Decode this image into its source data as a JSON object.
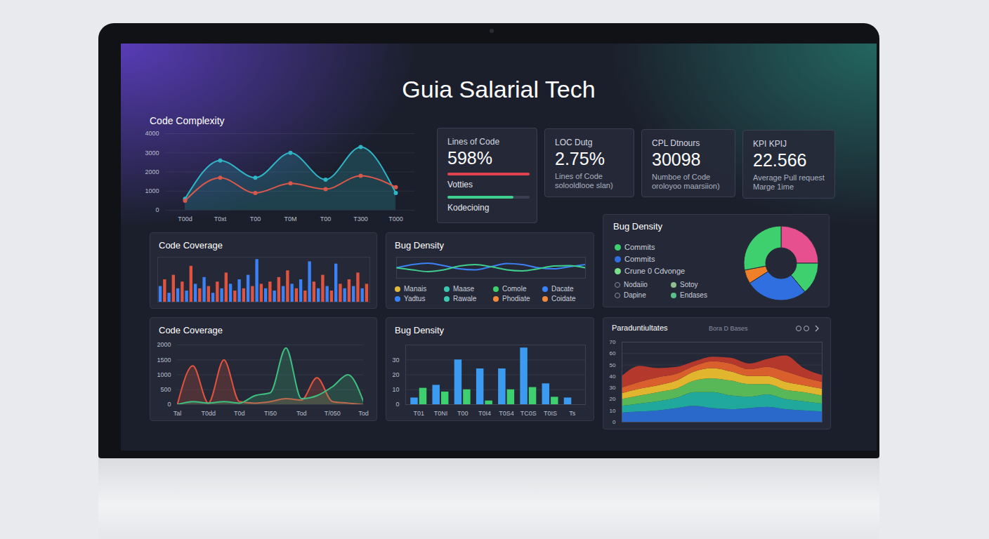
{
  "title": "Guia Salarial Tech",
  "kpi_cards": [
    {
      "label": "Lines of Code",
      "value": "598%",
      "caption": [
        "Votties",
        "Kodecioing"
      ],
      "colors": [
        "#e0424f",
        "#3ecf8e"
      ]
    },
    {
      "label": "LOC Dutg",
      "value": "2.75%",
      "caption": [
        "Lines of Code",
        "solooldlooe slan)"
      ]
    },
    {
      "label": "CPL Dtnours",
      "value": "30098",
      "caption": [
        "Numboe of Code",
        "oroloyoo maarsiion)"
      ]
    },
    {
      "label": "KPI KPIJ",
      "value": "22.566",
      "caption": [
        "Average Pull request",
        "Marge 1ime"
      ]
    }
  ],
  "chart_data": [
    {
      "type": "line",
      "title": "Code Complexity",
      "categories": [
        "T00d",
        "T0xt",
        "T00",
        "T0M",
        "T00",
        "T300",
        "T000"
      ],
      "series": [
        {
          "type": "area",
          "color": "#2fb5c6",
          "marker": "dot",
          "values": [
            600,
            2600,
            1700,
            3000,
            1600,
            3300,
            900
          ]
        },
        {
          "type": "line",
          "color": "#d9584a",
          "marker": "dot",
          "values": [
            500,
            1700,
            900,
            1400,
            1100,
            1800,
            1200
          ]
        }
      ],
      "ylim": [
        0,
        4000
      ],
      "yticks": [
        0,
        1000,
        2000,
        3000,
        4000
      ],
      "grid": true
    },
    {
      "type": "bar",
      "title": "Code Coverage",
      "values": [
        35,
        50,
        20,
        60,
        30,
        45,
        25,
        80,
        40,
        30,
        55,
        35,
        20,
        45,
        30,
        65,
        40,
        25,
        50,
        30,
        60,
        35,
        95,
        40,
        30,
        45,
        25,
        55,
        35,
        70,
        40,
        30,
        50,
        25,
        90,
        45,
        30,
        60,
        35,
        25,
        85,
        40,
        30,
        50,
        35,
        65,
        30,
        40
      ],
      "colors": [
        "#3b82f6",
        "#e0533f",
        "#3b82f6",
        "#e0533f",
        "#3b82f6",
        "#e0533f",
        "#3b82f6",
        "#e0533f",
        "#3b82f6",
        "#e0533f",
        "#3b82f6",
        "#e0533f",
        "#3b82f6",
        "#e0533f",
        "#3b82f6",
        "#e0533f",
        "#3b82f6",
        "#e0533f",
        "#3b82f6",
        "#e0533f",
        "#3b82f6",
        "#e0533f",
        "#3b82f6",
        "#e0533f",
        "#3b82f6",
        "#e0533f",
        "#3b82f6",
        "#e0533f",
        "#3b82f6",
        "#e0533f",
        "#3b82f6",
        "#e0533f",
        "#3b82f6",
        "#e0533f",
        "#3b82f6",
        "#e0533f",
        "#3b82f6",
        "#e0533f",
        "#3b82f6",
        "#e0533f",
        "#3b82f6",
        "#e0533f",
        "#3b82f6",
        "#e0533f",
        "#3b82f6",
        "#e0533f",
        "#3b82f6",
        "#e0533f"
      ],
      "ylim": [
        0,
        100
      ],
      "tick_labels": false
    },
    {
      "type": "line",
      "title": "Bug Density",
      "x": [
        0,
        1,
        2,
        3,
        4,
        5,
        6,
        7,
        8,
        9,
        10,
        11,
        12
      ],
      "series": [
        {
          "color": "#3b82f6",
          "values": [
            5,
            6.5,
            7.2,
            6,
            4.5,
            4,
            5.5,
            7,
            6.5,
            5,
            4.5,
            5.5,
            6.5
          ]
        },
        {
          "color": "#3ecf8e",
          "values": [
            5,
            4,
            3.2,
            4,
            5.8,
            6.5,
            5.5,
            4,
            3.5,
            4.5,
            5.8,
            6,
            5
          ]
        }
      ],
      "xlim": [
        0,
        12
      ],
      "ylim": [
        0,
        10
      ],
      "tick_labels": false,
      "legend_items": [
        {
          "label": "Manais",
          "color": "#e2b93b"
        },
        {
          "label": "Maase",
          "color": "#3cc7b0"
        },
        {
          "label": "Comole",
          "color": "#3ecf6e"
        },
        {
          "label": "Dacate",
          "color": "#3b82f6"
        },
        {
          "label": "Yadtus",
          "color": "#3b82f6"
        },
        {
          "label": "Rawale",
          "color": "#3cc7b0"
        },
        {
          "label": "Phodiate",
          "color": "#f08a3c"
        },
        {
          "label": "Coidate",
          "color": "#f08a3c"
        }
      ]
    },
    {
      "type": "pie",
      "title": "Bug Density",
      "values": [
        25,
        14,
        27,
        6,
        28
      ],
      "colors": [
        "#e6508f",
        "#3ecf6e",
        "#2f6fe0",
        "#f07f2a",
        "#3ecf6e"
      ],
      "legend_items": [
        {
          "label": "Commits",
          "color": "#3ecf6e",
          "marker": "dot"
        },
        {
          "label": "Commits",
          "color": "#2f6fe0",
          "marker": "dot"
        },
        {
          "label": "Crune 0 Cdvonge",
          "color": "#7be08a",
          "marker": "dot"
        },
        {
          "label": "Nodaiio",
          "color": "#8a90a0",
          "marker": "ring"
        },
        {
          "label": "Sotoy",
          "color": "#8fbf8f",
          "marker": "dot"
        },
        {
          "label": "Dapine",
          "color": "#8a90a0",
          "marker": "ring"
        },
        {
          "label": "Endases",
          "color": "#5ac08a",
          "marker": "dot"
        }
      ]
    },
    {
      "type": "line",
      "title": "Code Coverage",
      "x": [
        0,
        1,
        2,
        3,
        4,
        5,
        6,
        7,
        8,
        9,
        10,
        11,
        12
      ],
      "series": [
        {
          "type": "area",
          "color": "#e0533f",
          "values": [
            0,
            1300,
            50,
            1500,
            100,
            50,
            100,
            200,
            150,
            900,
            100,
            50,
            0
          ]
        },
        {
          "type": "area",
          "color": "#3fbf7f",
          "values": [
            0,
            100,
            50,
            100,
            50,
            300,
            400,
            1900,
            200,
            300,
            600,
            1000,
            100
          ]
        }
      ],
      "xlim": [
        0,
        12
      ],
      "xticks": [
        {
          "value": 0,
          "label": "Tal"
        },
        {
          "value": 2,
          "label": "T0dd"
        },
        {
          "value": 4,
          "label": "T0d"
        },
        {
          "value": 6,
          "label": "TI50"
        },
        {
          "value": 8,
          "label": "Tod"
        },
        {
          "value": 10,
          "label": "T/050"
        },
        {
          "value": 12,
          "label": "Tod"
        }
      ],
      "ylim": [
        0,
        2000
      ],
      "yticks": [
        0,
        500,
        1000,
        1500,
        2000
      ],
      "grid": true
    },
    {
      "type": "bar",
      "title": "Bug Density",
      "categories": [
        "T01",
        "T0NI",
        "T00",
        "T0I4",
        "T0S4",
        "TC0S",
        "T0IS",
        "Ts"
      ],
      "series": [
        {
          "color": "#3b9bf0",
          "values": [
            4.5,
            13,
            30,
            24,
            24,
            38,
            14,
            4.5
          ]
        },
        {
          "color": "#3ecf6e",
          "values": [
            11,
            8.5,
            10,
            2.5,
            10,
            11.5,
            5,
            null
          ]
        }
      ],
      "ylim": [
        0,
        40
      ],
      "yticks": [
        0,
        10,
        20,
        30
      ],
      "grid": true
    },
    {
      "type": "area",
      "title": "Paraduntiultates",
      "subtitle": "Bora D Bases",
      "x": [
        0,
        1,
        2,
        3,
        4,
        5,
        6,
        7,
        8,
        9,
        10,
        11
      ],
      "series": [
        {
          "color": "#2a6fd6",
          "values": [
            8,
            9,
            10,
            12,
            14,
            12,
            11,
            12,
            13,
            11,
            10,
            9
          ]
        },
        {
          "color": "#21b3a6",
          "values": [
            6,
            7,
            8,
            9,
            12,
            14,
            12,
            10,
            11,
            9,
            8,
            7
          ]
        },
        {
          "color": "#5cc45a",
          "values": [
            6,
            7,
            8,
            8,
            10,
            12,
            13,
            11,
            9,
            8,
            8,
            7
          ]
        },
        {
          "color": "#f2c12e",
          "values": [
            5,
            6,
            6,
            7,
            8,
            9,
            8,
            7,
            7,
            7,
            6,
            6
          ]
        },
        {
          "color": "#e8642c",
          "values": [
            5,
            6,
            7,
            6,
            5,
            6,
            7,
            6,
            8,
            9,
            7,
            6
          ]
        },
        {
          "color": "#c0392b",
          "values": [
            10,
            14,
            8,
            6,
            4,
            4,
            5,
            5,
            7,
            14,
            8,
            6
          ]
        }
      ],
      "xlim": [
        0,
        11
      ],
      "ylim": [
        0,
        70
      ],
      "yticks": [
        0,
        10,
        20,
        30,
        40,
        50,
        60,
        70
      ],
      "stacked": true,
      "grid": true,
      "tick_labels": "y"
    }
  ]
}
